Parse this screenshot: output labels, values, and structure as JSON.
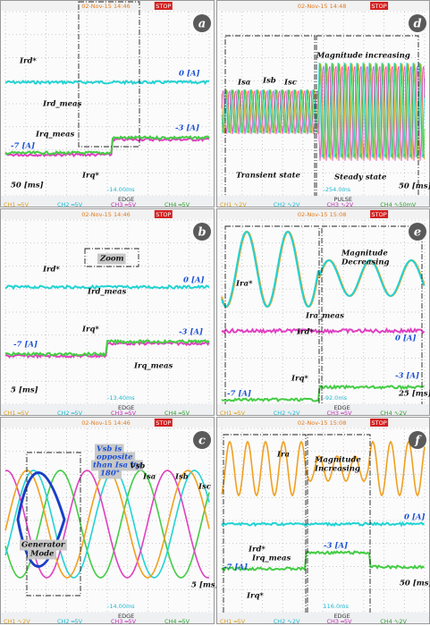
{
  "panels": [
    {
      "label": "a",
      "status": "02-Nov-15 14:46",
      "stop": "STOP",
      "readout": "-14.00ms",
      "trigger": "EDGE",
      "annotations": [
        "Ird*",
        "Ird_meas",
        "0 [A]",
        "Irq_meas",
        "-3 [A]",
        "-7 [A]",
        "Irq*",
        "50 [ms]"
      ],
      "footer": [
        "CH1 ═5V",
        "CH2 ═5V",
        "CH3 ═5V",
        "CH4 ═5V"
      ]
    },
    {
      "label": "b",
      "status": "02-Nov-15 14:46",
      "stop": "STOP",
      "readout": "-13.40ms",
      "trigger": "EDGE",
      "annotations": [
        "Zoom",
        "Ird*",
        "Ird_meas",
        "0 [A]",
        "Irq*",
        "-3 [A]",
        "-7 [A]",
        "Irq_meas",
        "5 [ms]"
      ],
      "footer": [
        "CH1 ═5V",
        "CH2 ═5V",
        "CH3 ═5V",
        "CH4 ═5V"
      ]
    },
    {
      "label": "c",
      "status": "02-Nov-15 14:46",
      "stop": "STOP",
      "readout": "-14.00ms",
      "trigger": "EDGE",
      "annotations": [
        "Vsb is",
        "opposite",
        "than Isa by",
        "180°",
        "Vsb",
        "Isa",
        "Isb",
        "Isc",
        "Generator",
        "Mode",
        "5 [ms]"
      ],
      "footer": [
        "CH1 ∿2V",
        "CH2 ═5V",
        "CH3 ═5V",
        "CH4 ═5V"
      ]
    },
    {
      "label": "d",
      "status": "02-Nov-15 14:48",
      "stop": "STOP",
      "readout": "-254.0ms",
      "trigger": "PULSE",
      "annotations": [
        "Isa",
        "Isb",
        "Isc",
        "Magnitude increasing",
        "Transient state",
        "Steady state",
        "50 [ms]"
      ],
      "footer": [
        "CH1 ∿2V",
        "CH2 ∿2V",
        "CH3 ∿2V",
        "CH4 ∿50mV"
      ]
    },
    {
      "label": "e",
      "status": "02-Nov-15 15:08",
      "stop": "STOP",
      "readout": "-92.0ms",
      "trigger": "EDGE",
      "annotations": [
        "Magnitude",
        "Decreasing",
        "Ira*",
        "Ira_meas",
        "Ird*",
        "0 [A]",
        "Irq*",
        "-3 [A]",
        "-7 [A]",
        "25 [ms]"
      ],
      "footer": [
        "CH1 ═5V",
        "CH2 ∿2V",
        "CH3 ═5V",
        "CH4 ∿2V"
      ]
    },
    {
      "label": "f",
      "status": "02-Nov-15 15:08",
      "stop": "STOP",
      "readout": "116.0ms",
      "trigger": "EDGE",
      "annotations": [
        "Ira",
        "Magnitude",
        "Increasing",
        "0 [A]",
        "Ird*",
        "Irq_meas",
        "-3 [A]",
        "-7 [A]",
        "Irq*",
        "50 [ms]"
      ],
      "footer": [
        "CH1 ═5V",
        "CH2 ∿2V",
        "CH3 ═5V",
        "CH4 ∿2V"
      ]
    }
  ]
}
